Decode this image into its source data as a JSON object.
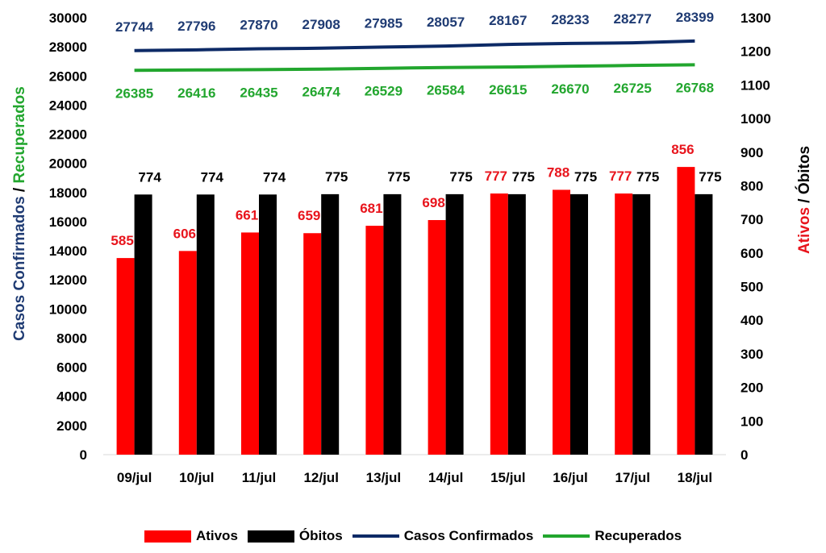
{
  "chart_data": {
    "type": "bar",
    "categories": [
      "09/jul",
      "10/jul",
      "11/jul",
      "12/jul",
      "13/jul",
      "14/jul",
      "15/jul",
      "16/jul",
      "17/jul",
      "18/jul"
    ],
    "series": [
      {
        "name": "Ativos",
        "type": "bar",
        "axis": "right",
        "color": "#ff0000",
        "label_color": "#e8141c",
        "values": [
          585,
          606,
          661,
          659,
          681,
          698,
          777,
          788,
          777,
          856
        ]
      },
      {
        "name": "Óbitos",
        "type": "bar",
        "axis": "right",
        "color": "#000000",
        "label_color": "#000000",
        "values": [
          774,
          774,
          774,
          775,
          775,
          775,
          775,
          775,
          775,
          775
        ]
      },
      {
        "name": "Casos Confirmados",
        "type": "line",
        "axis": "left",
        "color": "#0d2a66",
        "label_color": "#1f3b73",
        "values": [
          27744,
          27796,
          27870,
          27908,
          27985,
          28057,
          28167,
          28233,
          28277,
          28399
        ]
      },
      {
        "name": "Recuperados",
        "type": "line",
        "axis": "left",
        "color": "#22a62e",
        "label_color": "#22a62e",
        "values": [
          26385,
          26416,
          26435,
          26474,
          26529,
          26584,
          26615,
          26670,
          26725,
          26768
        ]
      }
    ],
    "left_axis": {
      "title_parts": [
        {
          "text": "Casos Confirmados",
          "color": "#1f3b73"
        },
        {
          "text": " / ",
          "color": "#000000"
        },
        {
          "text": "Recuperados",
          "color": "#22a62e"
        }
      ],
      "ylim": [
        0,
        30000
      ],
      "ticks": [
        "0",
        "2000",
        "4000",
        "6000",
        "8000",
        "10000",
        "12000",
        "14000",
        "16000",
        "18000",
        "20000",
        "22000",
        "24000",
        "26000",
        "28000",
        "30000"
      ]
    },
    "right_axis": {
      "title_parts": [
        {
          "text": "Ativos",
          "color": "#e8141c"
        },
        {
          "text": " / ",
          "color": "#000000"
        },
        {
          "text": "Óbitos",
          "color": "#000000"
        }
      ],
      "ylim": [
        0,
        1300
      ],
      "ticks": [
        "0",
        "100",
        "200",
        "300",
        "400",
        "500",
        "600",
        "700",
        "800",
        "900",
        "1000",
        "1100",
        "1200",
        "1300"
      ]
    },
    "grid": false,
    "legend_position": "bottom"
  }
}
